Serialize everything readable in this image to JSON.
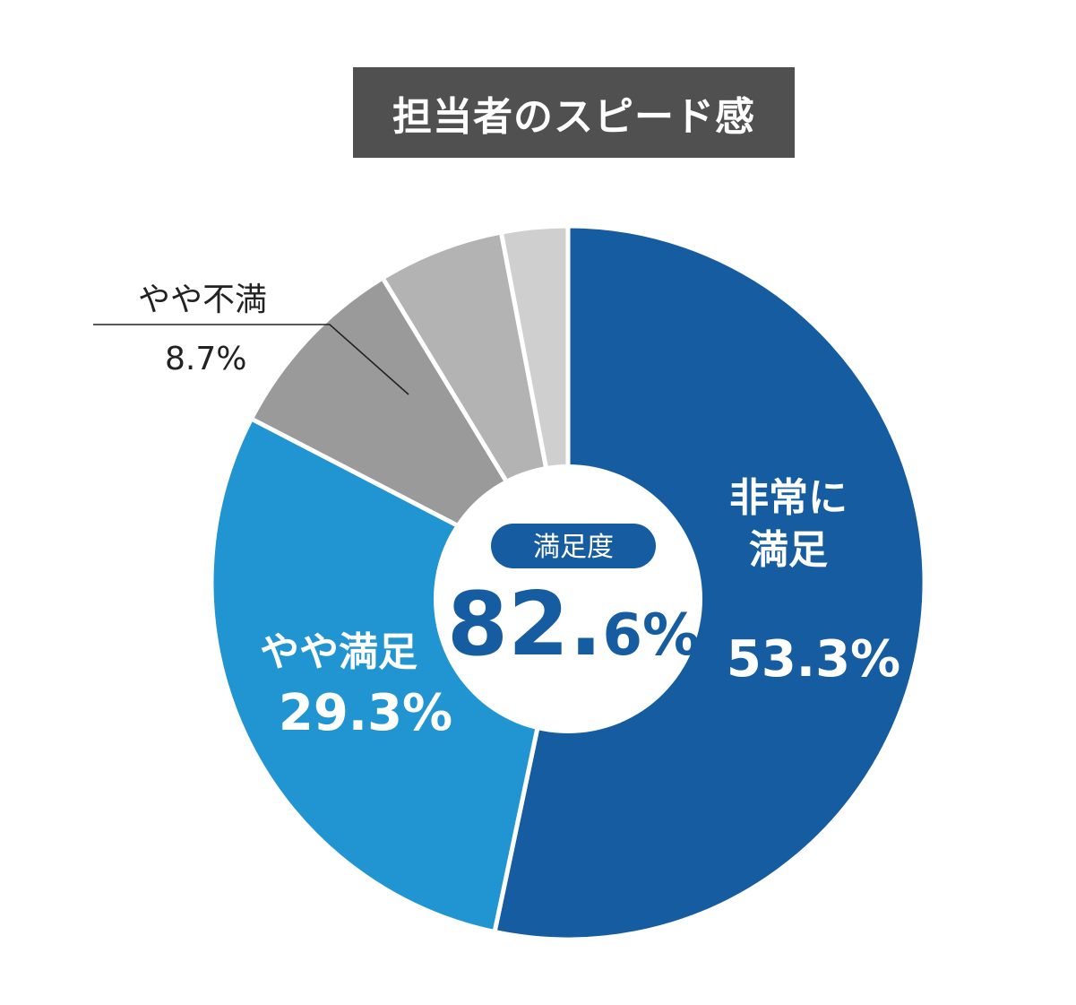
{
  "chart_data": {
    "type": "pie",
    "title": "担当者のスピード感",
    "slices": [
      {
        "name": "非常に満足",
        "label_lines": [
          "非常に",
          "満足"
        ],
        "value": 53.3,
        "value_label": "53.3%",
        "color": "#155ca1",
        "label_color": "#ffffff"
      },
      {
        "name": "やや満足",
        "label_lines": [
          "やや満足"
        ],
        "value": 29.3,
        "value_label": "29.3%",
        "color": "#2195d1",
        "label_color": "#ffffff"
      },
      {
        "name": "やや不満",
        "label_lines": [
          "やや不満"
        ],
        "value": 8.7,
        "value_label": "8.7%",
        "color": "#9a9a9a",
        "label_color": "#222222"
      },
      {
        "name": "",
        "label_lines": [],
        "value": 5.7,
        "value_label": "",
        "color": "#b3b3b3",
        "label_color": "#222222"
      },
      {
        "name": "",
        "label_lines": [],
        "value": 3.0,
        "value_label": "",
        "color": "#cfcfcf",
        "label_color": "#222222"
      }
    ],
    "center": {
      "badge": "満足度",
      "value_main": "82.",
      "value_small": "6%",
      "badge_color": "#155ca1"
    }
  }
}
